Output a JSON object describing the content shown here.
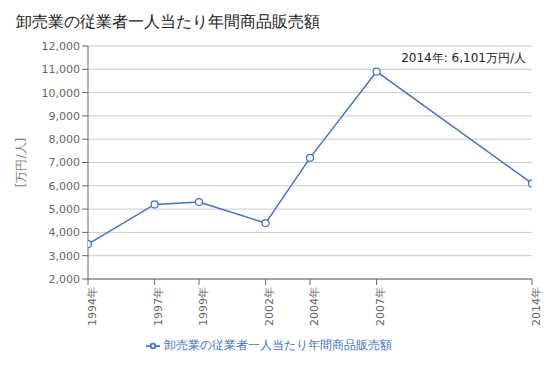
{
  "chart_data": {
    "type": "line",
    "title": "卸売業の従業者一人当たり年間商品販売額",
    "y_label": "[万円/人]",
    "annotation": "2014年: 6,101万円/人",
    "x": [
      1994,
      1997,
      1999,
      2002,
      2004,
      2007,
      2014
    ],
    "series": [
      {
        "name": "卸売業の従業者一人当たり年間商品販売額",
        "color": "#4472C4",
        "marker": "o",
        "values": [
          3500,
          5200,
          5300,
          4400,
          7200,
          10900,
          6101
        ]
      }
    ],
    "xlim": [
      1994,
      2014
    ],
    "xticks": [
      {
        "value": 1994,
        "label": "1994年"
      },
      {
        "value": 1997,
        "label": "1997年"
      },
      {
        "value": 1999,
        "label": "1999年"
      },
      {
        "value": 2002,
        "label": "2002年"
      },
      {
        "value": 2004,
        "label": "2004年"
      },
      {
        "value": 2007,
        "label": "2007年"
      },
      {
        "value": 2014,
        "label": "2014年"
      }
    ],
    "ylim": [
      2000,
      12000
    ],
    "yticks": [
      {
        "value": 2000,
        "label": "2,000"
      },
      {
        "value": 3000,
        "label": "3,000"
      },
      {
        "value": 4000,
        "label": "4,000"
      },
      {
        "value": 5000,
        "label": "5,000"
      },
      {
        "value": 6000,
        "label": "6,000"
      },
      {
        "value": 7000,
        "label": "7,000"
      },
      {
        "value": 8000,
        "label": "8,000"
      },
      {
        "value": 9000,
        "label": "9,000"
      },
      {
        "value": 10000,
        "label": "10,000"
      },
      {
        "value": 11000,
        "label": "11,000"
      },
      {
        "value": 12000,
        "label": "12,000"
      }
    ],
    "grid": "y",
    "legend": "bottom"
  }
}
